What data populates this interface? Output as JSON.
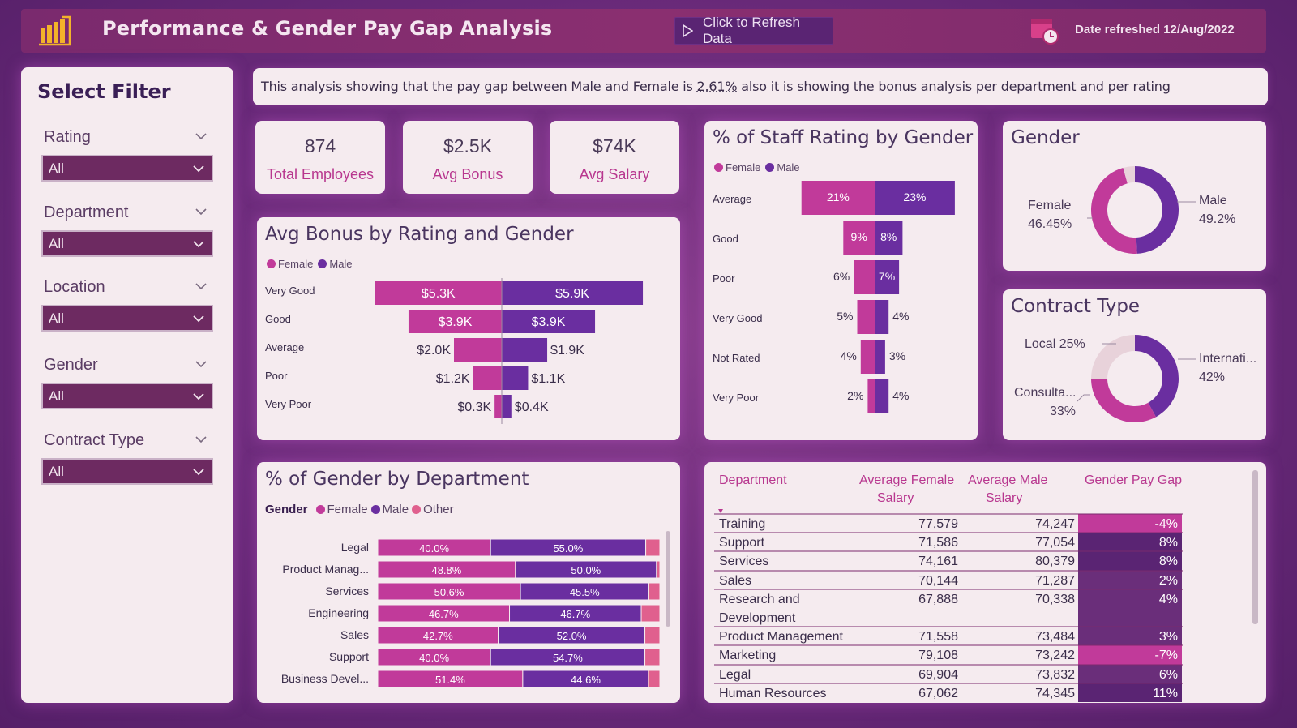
{
  "header": {
    "title": "Performance & Gender Pay Gap Analysis",
    "refresh_label": "Click to Refresh Data",
    "date_refreshed": "Date refreshed 12/Aug/2022"
  },
  "colors": {
    "female": "#c13a9a",
    "male": "#6a2ea0",
    "other": "#e0608e",
    "accent_header": "#7f2b6c"
  },
  "filters": {
    "title": "Select Filter",
    "items": [
      {
        "label": "Rating",
        "value": "All"
      },
      {
        "label": "Department",
        "value": "All"
      },
      {
        "label": "Location",
        "value": "All"
      },
      {
        "label": "Gender",
        "value": "All"
      },
      {
        "label": "Contract Type",
        "value": "All"
      }
    ]
  },
  "description": {
    "before": "This analysis showing that the pay gap between Male and Female is ",
    "pct": "2.61%",
    "after": " also it is showing the bonus analysis per department and per rating"
  },
  "kpis": [
    {
      "value": "874",
      "label": "Total Employees"
    },
    {
      "value": "$2.5K",
      "label": "Avg Bonus"
    },
    {
      "value": "$74K",
      "label": "Avg Salary"
    }
  ],
  "legend_labels": {
    "female": "Female",
    "male": "Male",
    "other": "Other",
    "gender": "Gender"
  },
  "chart_data": [
    {
      "id": "avg_bonus",
      "type": "bar",
      "title": "Avg Bonus by Rating and Gender",
      "categories": [
        "Very Good",
        "Good",
        "Average",
        "Poor",
        "Very Poor"
      ],
      "series": [
        {
          "name": "Female",
          "values": [
            5.3,
            3.9,
            2.0,
            1.2,
            0.3
          ],
          "labels": [
            "$5.3K",
            "$3.9K",
            "$2.0K",
            "$1.2K",
            "$0.3K"
          ]
        },
        {
          "name": "Male",
          "values": [
            5.9,
            3.9,
            1.9,
            1.1,
            0.4
          ],
          "labels": [
            "$5.9K",
            "$3.9K",
            "$1.9K",
            "$1.1K",
            "$0.4K"
          ]
        }
      ]
    },
    {
      "id": "staff_rating",
      "type": "bar",
      "title": "% of Staff Rating by Gender",
      "categories": [
        "Average",
        "Good",
        "Poor",
        "Very Good",
        "Not Rated",
        "Very Poor"
      ],
      "series": [
        {
          "name": "Female",
          "values": [
            21,
            9,
            6,
            5,
            4,
            2
          ],
          "labels": [
            "21%",
            "9%",
            "6%",
            "5%",
            "4%",
            "2%"
          ]
        },
        {
          "name": "Male",
          "values": [
            23,
            8,
            7,
            4,
            3,
            4
          ],
          "labels": [
            "23%",
            "8%",
            "7%",
            "4%",
            "3%",
            "4%"
          ]
        }
      ]
    },
    {
      "id": "gender_donut",
      "type": "pie",
      "title": "Gender",
      "slices": [
        {
          "name": "Male",
          "value": 49.2,
          "label": "49.2%"
        },
        {
          "name": "Female",
          "value": 46.45,
          "label": "46.45%"
        },
        {
          "name": "Other",
          "value": 4.35
        }
      ]
    },
    {
      "id": "contract_donut",
      "type": "pie",
      "title": "Contract Type",
      "slices": [
        {
          "name": "Internati...",
          "value": 42,
          "label": "42%"
        },
        {
          "name": "Consulta...",
          "value": 33,
          "label": "33%"
        },
        {
          "name": "Local",
          "value": 25,
          "label": "25%"
        }
      ]
    },
    {
      "id": "gender_by_dept",
      "type": "bar",
      "title": "% of Gender by Department",
      "categories": [
        "Legal",
        "Product Manag...",
        "Services",
        "Engineering",
        "Sales",
        "Support",
        "Business Devel..."
      ],
      "series": [
        {
          "name": "Female",
          "values": [
            40.0,
            48.8,
            50.6,
            46.7,
            42.7,
            40.0,
            51.4
          ],
          "labels": [
            "40.0%",
            "48.8%",
            "50.6%",
            "46.7%",
            "42.7%",
            "40.0%",
            "51.4%"
          ]
        },
        {
          "name": "Male",
          "values": [
            55.0,
            50.0,
            45.5,
            46.7,
            52.0,
            54.7,
            44.6
          ],
          "labels": [
            "55.0%",
            "50.0%",
            "45.5%",
            "46.7%",
            "52.0%",
            "54.7%",
            "44.6%"
          ]
        },
        {
          "name": "Other",
          "values": [
            5.0,
            1.2,
            3.9,
            6.6,
            5.3,
            5.3,
            4.0
          ]
        }
      ]
    },
    {
      "id": "salary_table",
      "type": "table",
      "columns": [
        "Department",
        "Average Female Salary",
        "Average Male Salary",
        "Gender Pay Gap"
      ],
      "rows": [
        [
          "Training",
          "77,579",
          "74,247",
          "-4%"
        ],
        [
          "Support",
          "71,586",
          "77,054",
          "8%"
        ],
        [
          "Services",
          "74,161",
          "80,379",
          "8%"
        ],
        [
          "Sales",
          "70,144",
          "71,287",
          "2%"
        ],
        [
          "Research and Development",
          "67,888",
          "70,338",
          "4%"
        ],
        [
          "Product Management",
          "71,558",
          "73,484",
          "3%"
        ],
        [
          "Marketing",
          "79,108",
          "73,242",
          "-7%"
        ],
        [
          "Legal",
          "69,904",
          "73,832",
          "6%"
        ],
        [
          "Human Resources",
          "67,062",
          "74,345",
          "11%"
        ]
      ]
    }
  ]
}
